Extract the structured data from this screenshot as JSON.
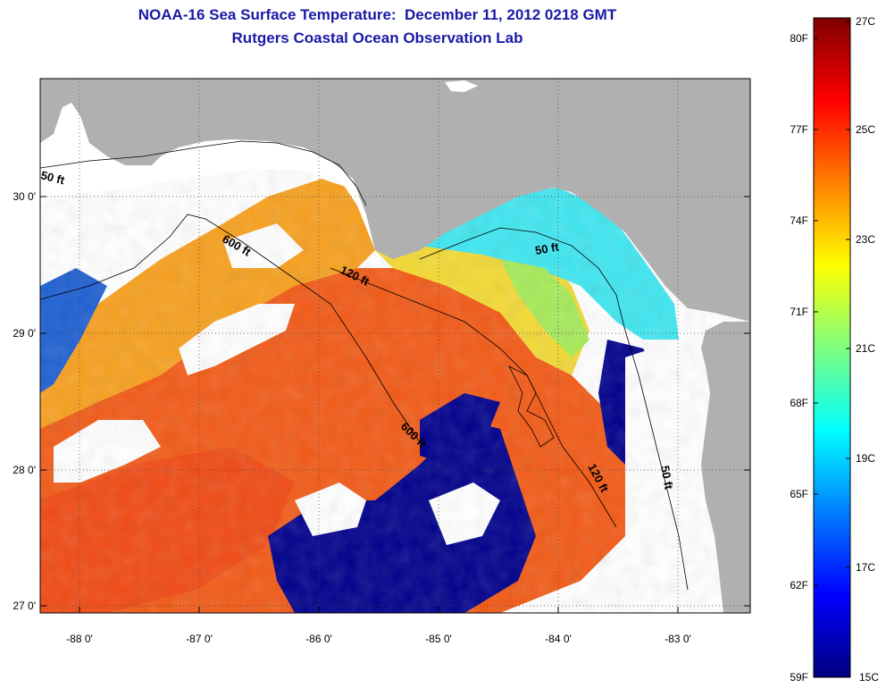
{
  "title": {
    "line1": "NOAA-16 Sea Surface Temperature:  December 11, 2012 0218 GMT",
    "line2": "Rutgers Coastal Ocean Observation Lab"
  },
  "map": {
    "lon_ticks": [
      "-88 0'",
      "-87 0'",
      "-86 0'",
      "-85 0'",
      "-84 0'",
      "-83 0'"
    ],
    "lat_ticks": [
      "30 0'",
      "29 0'",
      "28 0'",
      "27 0'"
    ],
    "contour_labels": {
      "nw_50": "50 ft",
      "nw_600": "600 ft",
      "mid_120": "120 ft",
      "ne_50": "50 ft",
      "s_600": "600 ft",
      "se_120": "120 ft",
      "e_50": "50 ft"
    },
    "colors": {
      "land": "#b0b0b0",
      "cloud": "#ffffff",
      "warm": "#f25a16",
      "warmer": "#f04a14",
      "orange_yellow": "#f7a01e",
      "yellow": "#f3d934",
      "green": "#a6ea58",
      "cyan": "#3fe6f0",
      "blue": "#1d5fd2",
      "dark_blue": "#00008c"
    }
  },
  "colorbar": {
    "fahrenheit_labels": [
      "80F",
      "77F",
      "74F",
      "71F",
      "68F",
      "65F",
      "62F",
      "59F"
    ],
    "celsius_labels": [
      "27C",
      "25C",
      "23C",
      "21C",
      "19C",
      "17C",
      "15C"
    ],
    "gradient": [
      "#00007f",
      "#0000ff",
      "#007fff",
      "#00ffff",
      "#7fff7f",
      "#ffff00",
      "#ff7f00",
      "#ff0000",
      "#7f0000"
    ]
  }
}
